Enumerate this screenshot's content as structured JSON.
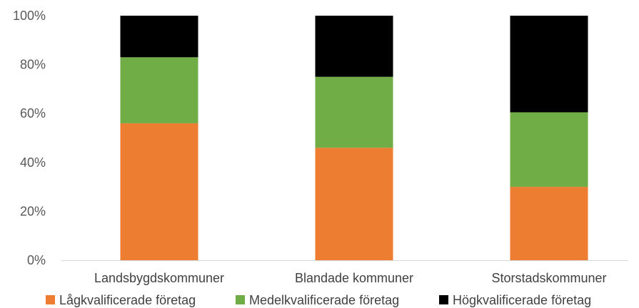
{
  "chart_data": {
    "type": "bar",
    "stacked": true,
    "percent": true,
    "categories": [
      "Landsbygdskommuner",
      "Blandade kommuner",
      "Storstadskommuner"
    ],
    "series": [
      {
        "name": "Lågkvalificerade företag",
        "color": "#ED7D31",
        "values": [
          56,
          46,
          30
        ]
      },
      {
        "name": "Medelkvalificerade företag",
        "color": "#70AD47",
        "values": [
          27,
          29,
          30.5
        ]
      },
      {
        "name": "Högkvalificerade företag",
        "color": "#000000",
        "values": [
          17,
          25,
          39.5
        ]
      }
    ],
    "yticks": [
      "0%",
      "20%",
      "40%",
      "60%",
      "80%",
      "100%"
    ],
    "ylim": [
      0,
      100
    ],
    "grid": false,
    "legend_position": "bottom"
  }
}
